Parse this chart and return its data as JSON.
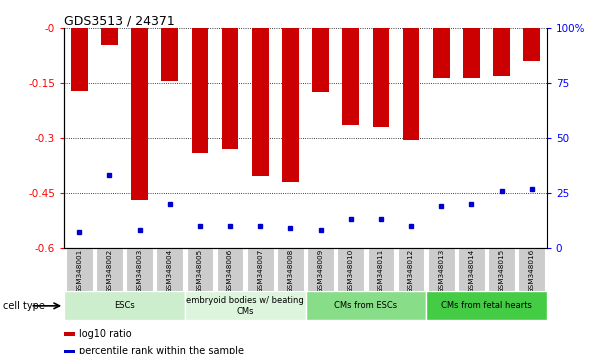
{
  "title": "GDS3513 / 24371",
  "samples": [
    "GSM348001",
    "GSM348002",
    "GSM348003",
    "GSM348004",
    "GSM348005",
    "GSM348006",
    "GSM348007",
    "GSM348008",
    "GSM348009",
    "GSM348010",
    "GSM348011",
    "GSM348012",
    "GSM348013",
    "GSM348014",
    "GSM348015",
    "GSM348016"
  ],
  "log10_ratio": [
    -0.17,
    -0.045,
    -0.47,
    -0.145,
    -0.34,
    -0.33,
    -0.405,
    -0.42,
    -0.175,
    -0.265,
    -0.27,
    -0.305,
    -0.135,
    -0.135,
    -0.13,
    -0.09
  ],
  "percentile_rank": [
    7,
    33,
    8,
    20,
    10,
    10,
    10,
    9,
    8,
    13,
    13,
    10,
    19,
    20,
    26,
    27
  ],
  "bar_color": "#cc0000",
  "dot_color": "#0000cc",
  "ylim_left": [
    -0.6,
    0.0
  ],
  "ylim_right": [
    0,
    100
  ],
  "yticks_left": [
    0.0,
    -0.15,
    -0.3,
    -0.45,
    -0.6
  ],
  "yticks_right": [
    0,
    25,
    50,
    75,
    100
  ],
  "ytick_labels_left": [
    "-0",
    "-0.15",
    "-0.3",
    "-0.45",
    "-0.6"
  ],
  "ytick_labels_right": [
    "0",
    "25",
    "50",
    "75",
    "100%"
  ],
  "cell_types": [
    {
      "label": "ESCs",
      "start": 0,
      "end": 4,
      "color": "#cceecc"
    },
    {
      "label": "embryoid bodies w/ beating\nCMs",
      "start": 4,
      "end": 8,
      "color": "#ddf5dd"
    },
    {
      "label": "CMs from ESCs",
      "start": 8,
      "end": 12,
      "color": "#88dd88"
    },
    {
      "label": "CMs from fetal hearts",
      "start": 12,
      "end": 16,
      "color": "#44cc44"
    }
  ],
  "cell_type_label": "cell type",
  "legend_items": [
    {
      "color": "#cc0000",
      "label": "log10 ratio"
    },
    {
      "color": "#0000cc",
      "label": "percentile rank within the sample"
    }
  ]
}
